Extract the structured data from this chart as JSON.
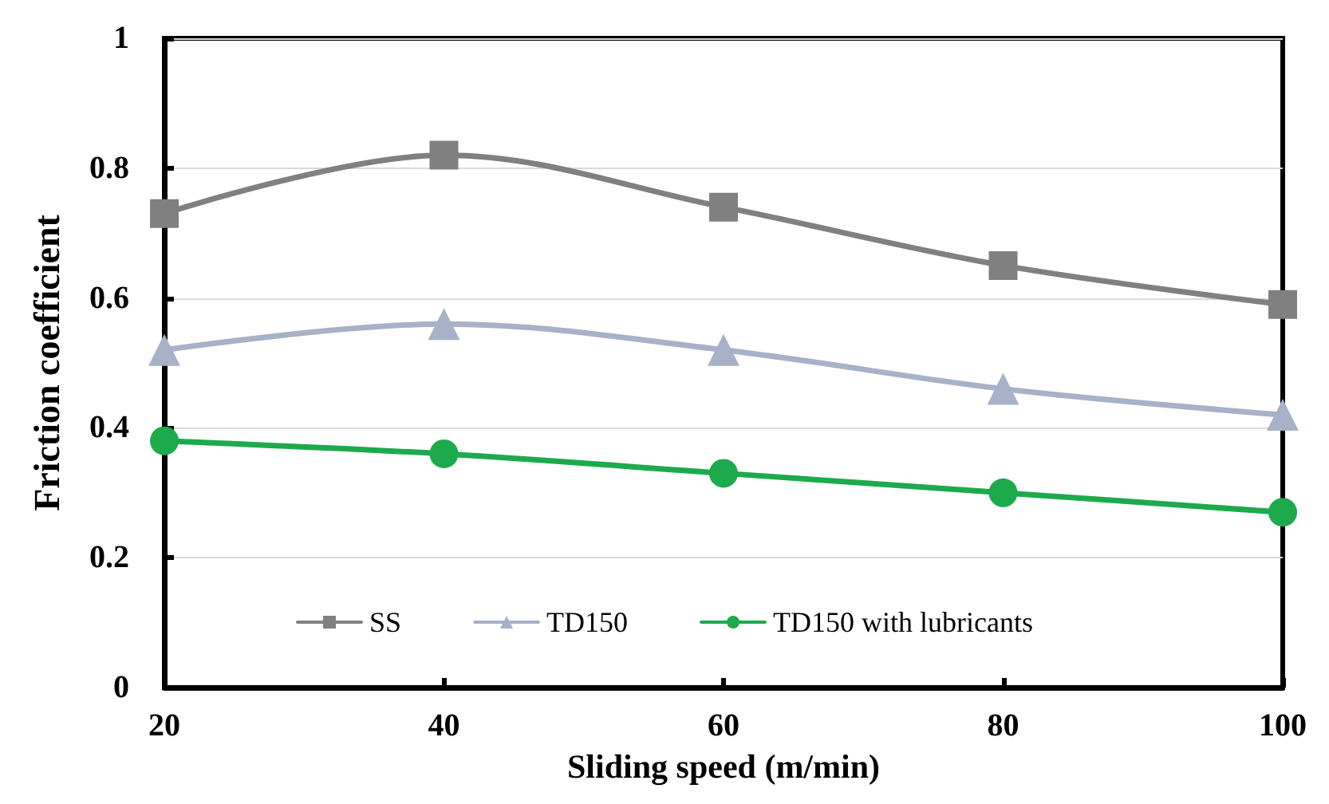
{
  "chart_data": {
    "type": "line",
    "xlabel": "Sliding speed (m/min)",
    "ylabel": "Friction coefficient",
    "x": [
      20,
      40,
      60,
      80,
      100
    ],
    "series": [
      {
        "name": "SS",
        "color": "#808080",
        "marker": "square",
        "values": [
          0.73,
          0.82,
          0.74,
          0.65,
          0.59
        ]
      },
      {
        "name": "TD150",
        "color": "#a7b1c7",
        "marker": "triangle",
        "values": [
          0.52,
          0.56,
          0.52,
          0.46,
          0.42
        ]
      },
      {
        "name": "TD150 with lubricants",
        "color": "#1daa4c",
        "marker": "circle",
        "values": [
          0.38,
          0.36,
          0.33,
          0.3,
          0.27
        ]
      }
    ],
    "xlim": [
      20,
      100
    ],
    "xticks": [
      20,
      40,
      60,
      80,
      100
    ],
    "ylim": [
      0,
      1
    ],
    "yticks": [
      0,
      0.2,
      0.4,
      0.6,
      0.8,
      1
    ],
    "grid": "y",
    "legend": "bottom",
    "line_style": "solid"
  }
}
